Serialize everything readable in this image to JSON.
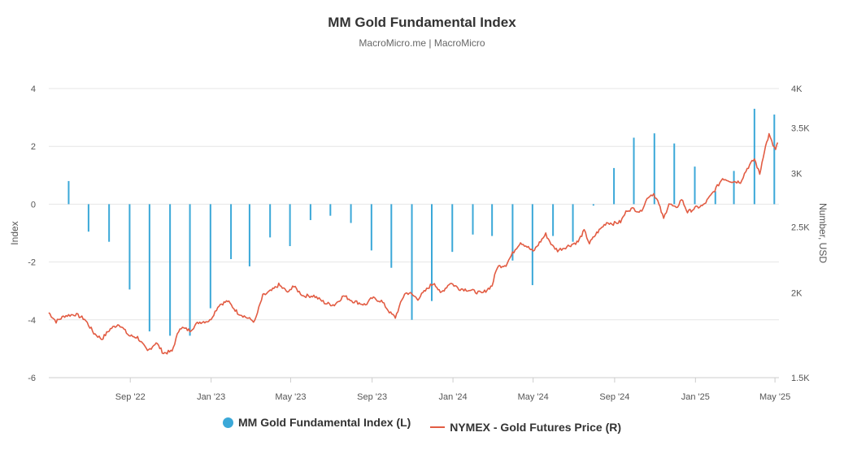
{
  "chart_data": {
    "type": "bar+line",
    "title": "MM Gold Fundamental Index",
    "subtitle": "MacroMicro.me | MacroMicro",
    "left_axis": {
      "label": "Index",
      "ylim": [
        -6,
        4
      ],
      "ticks": [
        "4",
        "2",
        "0",
        "-2",
        "-4",
        "-6"
      ],
      "tick_values": [
        4,
        2,
        0,
        -2,
        -4,
        -6
      ]
    },
    "right_axis": {
      "label": "Number, USD",
      "scale": "log",
      "ylim": [
        1500,
        4000
      ],
      "ticks": [
        "4K",
        "3.5K",
        "3K",
        "2.5K",
        "2K",
        "1.5K"
      ],
      "tick_values": [
        4000,
        3500,
        3000,
        2500,
        2000,
        1500
      ]
    },
    "x_axis": {
      "range": [
        "2022-05-01",
        "2025-05-07"
      ],
      "ticks": [
        {
          "date": "2022-09-01",
          "label": "Sep '22"
        },
        {
          "date": "2023-01-01",
          "label": "Jan '23"
        },
        {
          "date": "2023-05-01",
          "label": "May '23"
        },
        {
          "date": "2023-09-01",
          "label": "Sep '23"
        },
        {
          "date": "2024-01-01",
          "label": "Jan '24"
        },
        {
          "date": "2024-05-01",
          "label": "May '24"
        },
        {
          "date": "2024-09-01",
          "label": "Sep '24"
        },
        {
          "date": "2025-01-01",
          "label": "Jan '25"
        },
        {
          "date": "2025-05-01",
          "label": "May '25"
        }
      ]
    },
    "series": [
      {
        "name": "MM Gold Fundamental Index (L)",
        "type": "bar",
        "color": "#3ba8d8",
        "axis": "left",
        "x": [
          "2022-05-31",
          "2022-06-30",
          "2022-07-31",
          "2022-08-31",
          "2022-09-30",
          "2022-10-31",
          "2022-11-30",
          "2022-12-31",
          "2023-01-31",
          "2023-02-28",
          "2023-03-31",
          "2023-04-30",
          "2023-05-31",
          "2023-06-30",
          "2023-07-31",
          "2023-08-31",
          "2023-09-30",
          "2023-10-31",
          "2023-11-30",
          "2023-12-31",
          "2024-01-31",
          "2024-02-29",
          "2024-03-31",
          "2024-04-30",
          "2024-05-31",
          "2024-06-30",
          "2024-07-31",
          "2024-08-31",
          "2024-09-30",
          "2024-10-31",
          "2024-11-30",
          "2024-12-31",
          "2025-01-31",
          "2025-02-28",
          "2025-03-31",
          "2025-04-30"
        ],
        "values": [
          0.8,
          -0.95,
          -1.3,
          -2.95,
          -4.4,
          -4.55,
          -4.55,
          -3.6,
          -1.9,
          -2.15,
          -1.15,
          -1.45,
          -0.55,
          -0.4,
          -0.65,
          -1.6,
          -2.2,
          -4.0,
          -3.35,
          -1.65,
          -1.05,
          -1.1,
          -1.95,
          -2.8,
          -1.1,
          -1.3,
          -0.05,
          1.25,
          2.3,
          2.45,
          2.1,
          1.3,
          0.45,
          1.15,
          3.3,
          3.1
        ]
      },
      {
        "name": "NYMEX - Gold Futures Price (R)",
        "type": "line",
        "color": "#e25c43",
        "axis": "right",
        "points": [
          [
            "2022-05-01",
            1870
          ],
          [
            "2022-05-12",
            1815
          ],
          [
            "2022-05-25",
            1850
          ],
          [
            "2022-06-10",
            1860
          ],
          [
            "2022-06-24",
            1830
          ],
          [
            "2022-07-08",
            1745
          ],
          [
            "2022-07-20",
            1710
          ],
          [
            "2022-08-02",
            1770
          ],
          [
            "2022-08-15",
            1800
          ],
          [
            "2022-08-30",
            1730
          ],
          [
            "2022-09-12",
            1720
          ],
          [
            "2022-09-27",
            1640
          ],
          [
            "2022-10-10",
            1690
          ],
          [
            "2022-10-21",
            1630
          ],
          [
            "2022-11-03",
            1640
          ],
          [
            "2022-11-15",
            1780
          ],
          [
            "2022-11-30",
            1760
          ],
          [
            "2022-12-13",
            1810
          ],
          [
            "2022-12-30",
            1820
          ],
          [
            "2023-01-13",
            1920
          ],
          [
            "2023-01-26",
            1945
          ],
          [
            "2023-02-10",
            1870
          ],
          [
            "2023-02-28",
            1830
          ],
          [
            "2023-03-08",
            1815
          ],
          [
            "2023-03-20",
            1980
          ],
          [
            "2023-04-04",
            2020
          ],
          [
            "2023-04-13",
            2055
          ],
          [
            "2023-04-28",
            2000
          ],
          [
            "2023-05-04",
            2050
          ],
          [
            "2023-05-20",
            1980
          ],
          [
            "2023-06-05",
            1980
          ],
          [
            "2023-06-23",
            1930
          ],
          [
            "2023-07-06",
            1920
          ],
          [
            "2023-07-20",
            1980
          ],
          [
            "2023-08-03",
            1945
          ],
          [
            "2023-08-22",
            1920
          ],
          [
            "2023-09-01",
            1965
          ],
          [
            "2023-09-15",
            1945
          ],
          [
            "2023-09-29",
            1865
          ],
          [
            "2023-10-06",
            1840
          ],
          [
            "2023-10-20",
            1995
          ],
          [
            "2023-10-27",
            2000
          ],
          [
            "2023-11-09",
            1960
          ],
          [
            "2023-11-28",
            2050
          ],
          [
            "2023-12-04",
            2070
          ],
          [
            "2023-12-13",
            1995
          ],
          [
            "2023-12-28",
            2070
          ],
          [
            "2024-01-10",
            2030
          ],
          [
            "2024-01-25",
            2020
          ],
          [
            "2024-02-14",
            1995
          ],
          [
            "2024-02-29",
            2050
          ],
          [
            "2024-03-08",
            2185
          ],
          [
            "2024-03-21",
            2200
          ],
          [
            "2024-04-04",
            2320
          ],
          [
            "2024-04-12",
            2375
          ],
          [
            "2024-04-22",
            2340
          ],
          [
            "2024-05-01",
            2300
          ],
          [
            "2024-05-20",
            2440
          ],
          [
            "2024-05-30",
            2345
          ],
          [
            "2024-06-07",
            2310
          ],
          [
            "2024-06-21",
            2340
          ],
          [
            "2024-07-08",
            2380
          ],
          [
            "2024-07-17",
            2470
          ],
          [
            "2024-07-25",
            2365
          ],
          [
            "2024-08-05",
            2450
          ],
          [
            "2024-08-20",
            2540
          ],
          [
            "2024-08-30",
            2530
          ],
          [
            "2024-09-10",
            2545
          ],
          [
            "2024-09-20",
            2650
          ],
          [
            "2024-09-30",
            2660
          ],
          [
            "2024-10-10",
            2630
          ],
          [
            "2024-10-22",
            2775
          ],
          [
            "2024-10-30",
            2800
          ],
          [
            "2024-11-05",
            2730
          ],
          [
            "2024-11-14",
            2570
          ],
          [
            "2024-11-22",
            2710
          ],
          [
            "2024-12-03",
            2660
          ],
          [
            "2024-12-11",
            2750
          ],
          [
            "2024-12-20",
            2630
          ],
          [
            "2025-01-02",
            2670
          ],
          [
            "2025-01-13",
            2690
          ],
          [
            "2025-01-24",
            2780
          ],
          [
            "2025-02-03",
            2870
          ],
          [
            "2025-02-11",
            2950
          ],
          [
            "2025-02-25",
            2920
          ],
          [
            "2025-03-10",
            2915
          ],
          [
            "2025-03-20",
            3050
          ],
          [
            "2025-03-31",
            3150
          ],
          [
            "2025-04-08",
            2990
          ],
          [
            "2025-04-15",
            3240
          ],
          [
            "2025-04-22",
            3420
          ],
          [
            "2025-04-28",
            3300
          ],
          [
            "2025-05-02",
            3250
          ],
          [
            "2025-05-05",
            3330
          ]
        ]
      }
    ],
    "legend": [
      {
        "label": "MM Gold Fundamental Index (L)",
        "marker": "circle",
        "color": "#3ba8d8"
      },
      {
        "label": "NYMEX - Gold Futures Price (R)",
        "marker": "line",
        "color": "#e25c43"
      }
    ]
  }
}
